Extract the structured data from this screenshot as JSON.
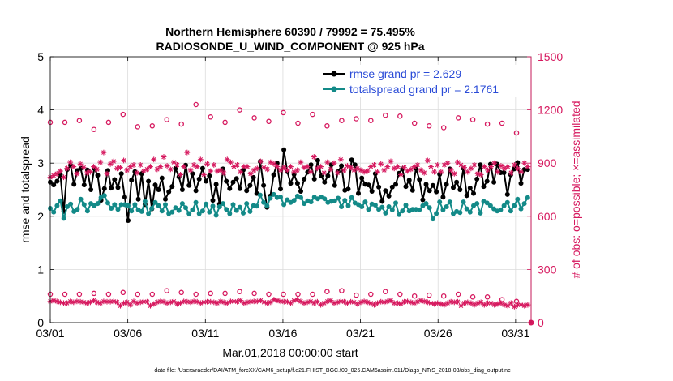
{
  "chart_data": {
    "type": "line",
    "title_line1": "Northern Hemisphere 60390 / 79992 = 75.495%",
    "title_line2": "RADIOSONDE_U_WIND_COMPONENT @ 925 hPa",
    "xlabel": "Mar.01,2018 00:00:00 start",
    "ylabel_left": "rmse and totalspread",
    "ylabel_right": "# of obs: o=possible; ×=assimilated",
    "footer": "data file: /Users/raeder/DAI/ATM_forcXX/CAM6_setup/f.e21.FHIST_BGC.f09_025.CAM6assim.011/Diags_NTrS_2018-03/obs_diag_output.nc",
    "x_ticks": [
      "03/01",
      "03/06",
      "03/11",
      "03/16",
      "03/21",
      "03/26",
      "03/31"
    ],
    "x_tick_days": [
      1,
      6,
      11,
      16,
      21,
      26,
      31
    ],
    "x_range_days": [
      1,
      32
    ],
    "y_left_ticks": [
      "0",
      "1",
      "2",
      "3",
      "4",
      "5"
    ],
    "y_left_range": [
      0,
      5
    ],
    "y_right_ticks": [
      "0",
      "300",
      "600",
      "900",
      "1200",
      "1500"
    ],
    "y_right_range": [
      0,
      1500
    ],
    "grid": true,
    "legend_position": "top-right",
    "series": [
      {
        "name": "rmse grand pr = 2.629",
        "color": "#000000",
        "axis": "left",
        "values": [
          2.64,
          2.59,
          2.66,
          2.78,
          2.09,
          2.88,
          2.96,
          2.6,
          2.86,
          2.9,
          2.59,
          2.87,
          2.5,
          2.9,
          2.77,
          2.3,
          2.52,
          2.86,
          2.53,
          2.69,
          2.54,
          2.8,
          2.36,
          1.92,
          2.68,
          2.84,
          2.32,
          2.8,
          2.22,
          2.66,
          2.14,
          2.59,
          2.5,
          2.72,
          2.32,
          2.46,
          2.56,
          2.9,
          2.74,
          2.5,
          2.96,
          2.58,
          2.8,
          2.48,
          2.7,
          2.9,
          2.66,
          2.76,
          2.3,
          2.6,
          2.23,
          2.89,
          2.66,
          2.52,
          2.64,
          2.71,
          2.52,
          2.87,
          2.48,
          2.58,
          2.73,
          2.43,
          3.03,
          2.58,
          2.17,
          2.38,
          2.78,
          3.0,
          2.51,
          3.25,
          2.84,
          2.62,
          2.79,
          2.62,
          2.47,
          2.7,
          2.83,
          2.97,
          2.7,
          3.05,
          2.76,
          2.64,
          2.76,
          2.97,
          2.58,
          2.84,
          2.95,
          2.49,
          2.51,
          3.06,
          2.97,
          2.43,
          2.72,
          2.6,
          2.59,
          2.47,
          2.8,
          2.55,
          2.28,
          2.48,
          2.38,
          2.55,
          2.6,
          2.81,
          2.89,
          2.56,
          2.68,
          2.49,
          2.9,
          2.69,
          2.31,
          2.6,
          2.48,
          2.58,
          2.46,
          2.79,
          2.36,
          2.6,
          2.89,
          2.54,
          2.64,
          2.5,
          2.9,
          2.39,
          2.53,
          2.43,
          2.7,
          2.97,
          2.56,
          2.66,
          2.98,
          2.64,
          2.98,
          2.82,
          2.82,
          2.41,
          2.78,
          2.89,
          3.01,
          2.62,
          2.88,
          2.88
        ]
      },
      {
        "name": "totalspread grand pr = 2.1761",
        "color": "#138a88",
        "axis": "left",
        "values": [
          2.15,
          2.08,
          2.2,
          2.29,
          1.96,
          2.18,
          2.23,
          2.09,
          2.13,
          2.32,
          2.22,
          2.1,
          2.24,
          2.2,
          2.24,
          2.35,
          2.39,
          2.25,
          2.15,
          2.22,
          2.13,
          2.22,
          2.22,
          2.2,
          2.1,
          2.22,
          2.12,
          2.09,
          2.28,
          2.05,
          2.15,
          2.26,
          2.2,
          2.1,
          2.22,
          2.05,
          2.08,
          2.16,
          2.11,
          2.24,
          2.16,
          2.05,
          2.12,
          2.26,
          2.05,
          2.1,
          2.23,
          2.08,
          2.19,
          2.02,
          2.18,
          2.24,
          2.13,
          2.05,
          2.22,
          2.11,
          2.17,
          2.06,
          2.24,
          2.09,
          2.2,
          2.19,
          2.4,
          2.26,
          2.2,
          2.34,
          2.41,
          2.35,
          2.36,
          2.22,
          2.31,
          2.26,
          2.3,
          2.38,
          2.35,
          2.24,
          2.29,
          2.27,
          2.36,
          2.33,
          2.36,
          2.33,
          2.26,
          2.28,
          2.29,
          2.34,
          2.18,
          2.3,
          2.2,
          2.35,
          2.25,
          2.22,
          2.18,
          2.27,
          2.13,
          2.23,
          2.21,
          2.13,
          2.17,
          2.06,
          2.18,
          2.12,
          2.25,
          2.03,
          2.1,
          2.21,
          2.1,
          2.13,
          2.13,
          2.12,
          2.2,
          2.24,
          2.16,
          1.95,
          2.05,
          2.27,
          2.12,
          2.18,
          2.27,
          2.05,
          2.09,
          2.07,
          2.27,
          2.14,
          2.08,
          2.2,
          2.24,
          2.06,
          2.28,
          2.25,
          2.2,
          2.14,
          2.1,
          2.12,
          2.2,
          2.26,
          2.1,
          2.2,
          2.32,
          2.14,
          2.24,
          2.35
        ]
      },
      {
        "name": "possible obs (daily 00Z)",
        "color": "#d6185e",
        "axis": "right",
        "marker": "circle",
        "values": [
          1130,
          1130,
          1140,
          1090,
          1130,
          1175,
          1105,
          1110,
          1145,
          1120,
          1230,
          1160,
          1130,
          1200,
          1155,
          1135,
          1185,
          1125,
          1175,
          1110,
          1140,
          1150,
          1140,
          1170,
          1165,
          1125,
          1110,
          1100,
          1155,
          1145,
          1120,
          1125,
          1070
        ]
      },
      {
        "name": "possible obs (daily 12Z)",
        "color": "#d6185e",
        "axis": "right",
        "marker": "circle",
        "values": [
          160,
          160,
          160,
          165,
          160,
          170,
          160,
          160,
          180,
          170,
          160,
          165,
          165,
          175,
          165,
          160,
          160,
          160,
          160,
          175,
          180,
          155,
          160,
          175,
          160,
          150,
          155,
          150,
          160,
          145,
          145,
          130,
          120
        ]
      },
      {
        "name": "assimilated obs (6-hourly)",
        "color": "#d6185e",
        "axis": "right",
        "marker": "asterisk",
        "values": [
          820,
          830,
          840,
          855,
          820,
          870,
          905,
          880,
          840,
          895,
          875,
          845,
          850,
          880,
          865,
          905,
          960,
          840,
          895,
          910,
          870,
          875,
          915,
          860,
          880,
          890,
          845,
          890,
          855,
          865,
          880,
          920,
          865,
          880,
          935,
          885,
          865,
          905,
          890,
          835,
          880,
          960,
          860,
          890,
          880,
          920,
          835,
          895,
          855,
          890,
          855,
          860,
          845,
          920,
          905,
          880,
          890,
          850,
          880,
          880,
          840,
          860,
          870,
          910,
          875,
          865,
          905,
          895,
          880,
          860,
          875,
          860,
          880,
          850,
          860,
          905,
          875,
          880,
          850,
          935,
          870,
          880,
          845,
          905,
          865,
          900,
          845,
          920,
          860,
          885,
          875,
          860,
          870,
          860,
          850,
          855,
          880,
          890,
          850,
          895,
          860,
          880,
          910,
          870,
          880,
          835,
          875,
          855,
          865,
          880,
          890,
          860,
          845,
          915,
          880,
          850,
          890,
          850,
          890,
          900,
          860,
          840,
          905,
          890,
          875,
          850,
          870,
          890,
          840,
          835,
          880,
          860,
          880,
          900,
          850,
          885,
          870,
          880,
          845,
          890,
          870,
          850,
          900,
          880
        ]
      },
      {
        "name": "assimilated obs low (6-hourly)",
        "color": "#d6185e",
        "axis": "right",
        "marker": "asterisk",
        "values": [
          120,
          125,
          120,
          115,
          110,
          110,
          120,
          115,
          120,
          118,
          115,
          110,
          115,
          125,
          115,
          110,
          120,
          118,
          118,
          120,
          115,
          95,
          110,
          115,
          100,
          120,
          110,
          115,
          118,
          118,
          95,
          105,
          115,
          120,
          118,
          110,
          115,
          120,
          105,
          110,
          120,
          118,
          115,
          120,
          118,
          110,
          115,
          118,
          118,
          115,
          110,
          120,
          115,
          110,
          120,
          120,
          118,
          125,
          110,
          115,
          118,
          120,
          120,
          125,
          115,
          110,
          115,
          130,
          125,
          120,
          118,
          118,
          110,
          125,
          130,
          120,
          110,
          115,
          120,
          110,
          118,
          100,
          110,
          120,
          125,
          110,
          115,
          120,
          118,
          110,
          118,
          115,
          105,
          115,
          120,
          115,
          110,
          100,
          110,
          118,
          115,
          120,
          125,
          110,
          110,
          105,
          118,
          120,
          115,
          110,
          118,
          125,
          120,
          115,
          110,
          105,
          110,
          105,
          100,
          110,
          118,
          115,
          118,
          95,
          110,
          115,
          110,
          100,
          110,
          115,
          100,
          110,
          110,
          100,
          105,
          110,
          100,
          95,
          110,
          90,
          100,
          100,
          95,
          100
        ]
      }
    ]
  }
}
